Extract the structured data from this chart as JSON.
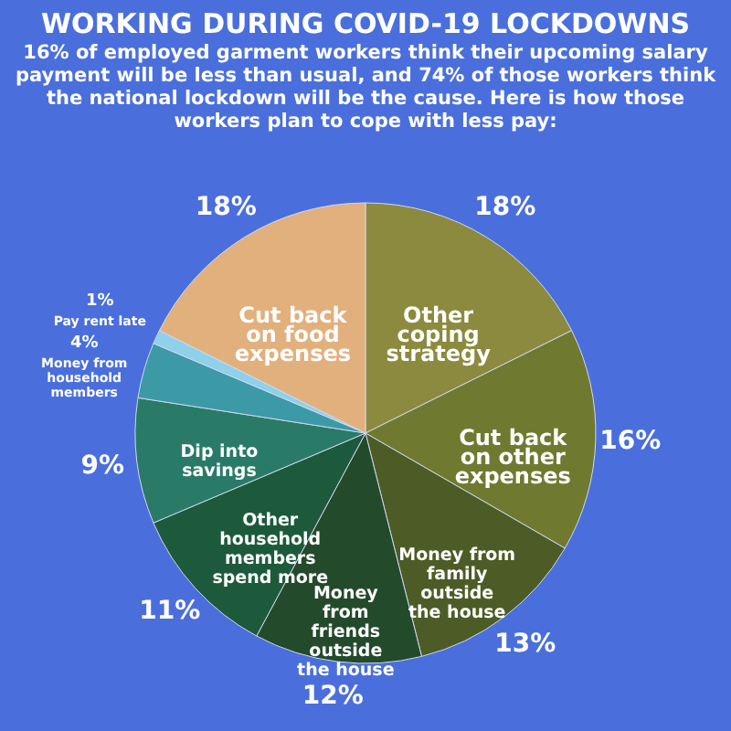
{
  "chart_data": {
    "type": "pie",
    "title": "WORKING DURING COVID-19 LOCKDOWNS",
    "subtitle": "16% of employed garment workers think their upcoming salary payment will be less than usual, and 74% of those workers think the national lockdown will be the cause. Here is how those workers plan to cope with less pay:",
    "categories": [
      "Other coping strategy",
      "Cut back on other expenses",
      "Money from family outside the house",
      "Money from friends outside the house",
      "Other household members spend more",
      "Dip into savings",
      "Money from household members",
      "Pay rent late",
      "Cut back on food expenses"
    ],
    "values": [
      18,
      16,
      13,
      12,
      11,
      9,
      4,
      1,
      18
    ],
    "colors": [
      "#8c8a3e",
      "#6f7a30",
      "#4d5c26",
      "#244a2c",
      "#1d5a3c",
      "#2a7a68",
      "#3c9aa6",
      "#8fd0ea",
      "#e2b07c"
    ],
    "value_labels": [
      "18%",
      "16%",
      "13%",
      "12%",
      "11%",
      "9%",
      "4%",
      "1%",
      "18%"
    ]
  }
}
